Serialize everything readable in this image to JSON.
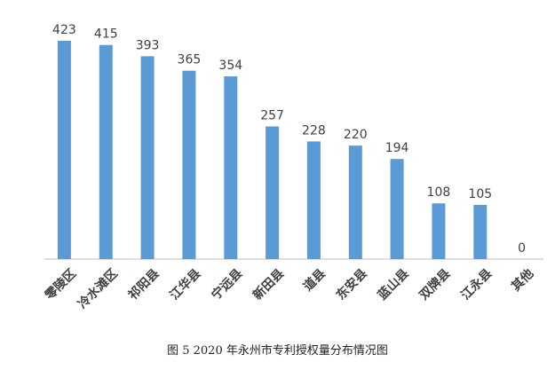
{
  "chart_data": {
    "type": "bar",
    "categories": [
      "零陵区",
      "冷水滩区",
      "祁阳县",
      "江华县",
      "宁远县",
      "新田县",
      "道县",
      "东安县",
      "蓝山县",
      "双牌县",
      "江永县",
      "其他"
    ],
    "values": [
      423,
      415,
      393,
      365,
      354,
      257,
      228,
      220,
      194,
      108,
      105,
      0
    ],
    "title": "",
    "xlabel": "",
    "ylabel": "",
    "ylim": [
      0,
      423
    ],
    "grid": false,
    "legend": "none",
    "bar_color": "#5b9bd5",
    "label_color": "#404040"
  },
  "caption": "图 5  2020 年永州市专利授权量分布情况图"
}
